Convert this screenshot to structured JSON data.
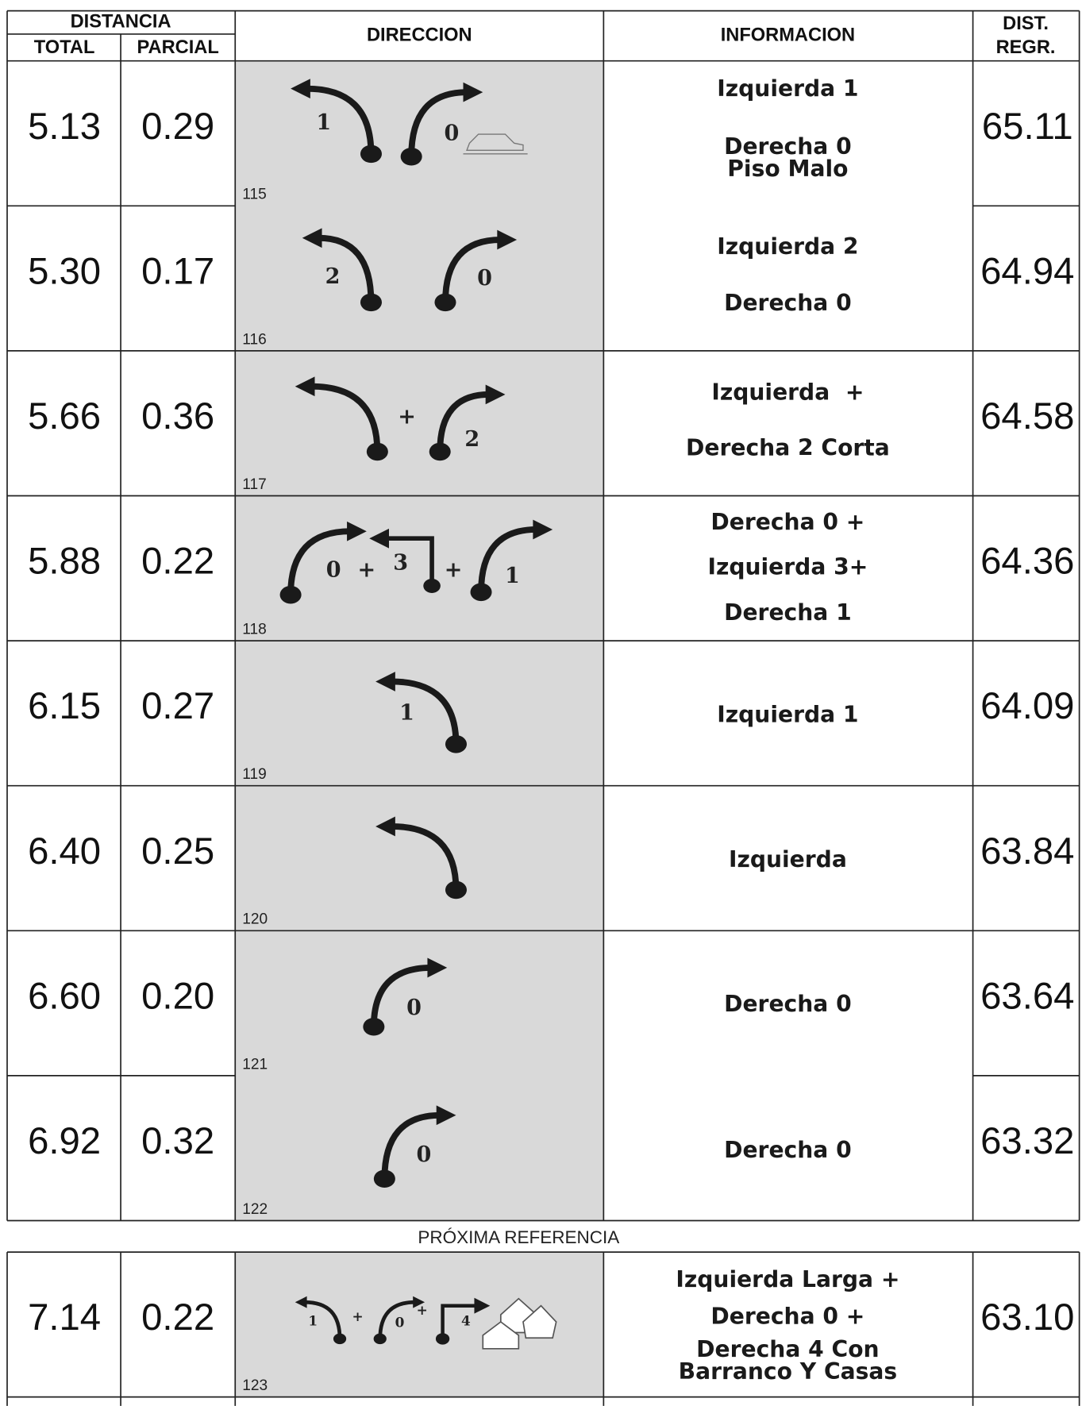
{
  "header": {
    "distancia": "DISTANCIA",
    "total": "TOTAL",
    "parcial": "PARCIAL",
    "direccion": "DIRECCION",
    "informacion": "INFORMACION",
    "dist": "DIST.",
    "regr": "REGR."
  },
  "rows": [
    {
      "total": "5.13",
      "parcial": "0.29",
      "number": "115",
      "icon_labels": [
        "1",
        "0"
      ],
      "info": [
        "Izquierda 1",
        "Derecha 0",
        "Piso Malo"
      ],
      "regr": "65.11"
    },
    {
      "total": "5.30",
      "parcial": "0.17",
      "number": "116",
      "icon_labels": [
        "2",
        "0"
      ],
      "info": [
        "Izquierda 2",
        "Derecha 0"
      ],
      "regr": "64.94"
    },
    {
      "total": "5.66",
      "parcial": "0.36",
      "number": "117",
      "icon_labels": [
        "+",
        "2"
      ],
      "info": [
        "Izquierda  +",
        "Derecha 2 Corta"
      ],
      "regr": "64.58"
    },
    {
      "total": "5.88",
      "parcial": "0.22",
      "number": "118",
      "icon_labels": [
        "0",
        "+",
        "3",
        "+",
        "1"
      ],
      "info": [
        "Derecha 0 +",
        "Izquierda 3+",
        "Derecha 1"
      ],
      "regr": "64.36"
    },
    {
      "total": "6.15",
      "parcial": "0.27",
      "number": "119",
      "icon_labels": [
        "1"
      ],
      "info": [
        "Izquierda 1"
      ],
      "regr": "64.09"
    },
    {
      "total": "6.40",
      "parcial": "0.25",
      "number": "120",
      "icon_labels": [],
      "info": [
        "Izquierda"
      ],
      "regr": "63.84"
    },
    {
      "total": "6.60",
      "parcial": "0.20",
      "number": "121",
      "icon_labels": [
        "0"
      ],
      "info": [
        "Derecha 0"
      ],
      "regr": "63.64"
    },
    {
      "total": "6.92",
      "parcial": "0.32",
      "number": "122",
      "icon_labels": [
        "0"
      ],
      "info": [
        "Derecha 0"
      ],
      "regr": "63.32"
    }
  ],
  "next_reference": "PRÓXIMA REFERENCIA",
  "next_rows": [
    {
      "total": "7.14",
      "parcial": "0.22",
      "number": "123",
      "icon_labels": [
        "1",
        "+",
        "0",
        "+",
        "4"
      ],
      "info": [
        "Izquierda Larga +",
        "Derecha 0 +",
        "Derecha 4 Con",
        "Barranco Y Casas"
      ],
      "regr": "63.10"
    }
  ]
}
